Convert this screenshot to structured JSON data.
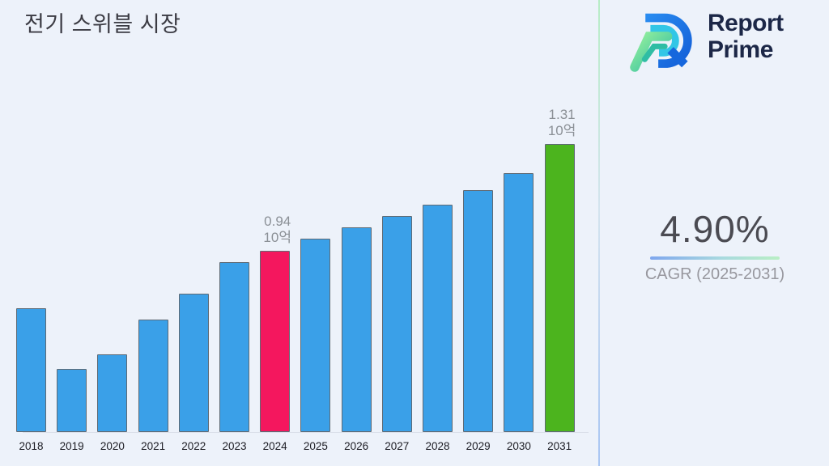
{
  "page": {
    "background": "#edf2fa"
  },
  "header": {
    "title": "전기 스위블 시장"
  },
  "brand": {
    "name_line1": "Report",
    "name_line2": "Prime",
    "text_color": "#1c2747"
  },
  "cagr": {
    "value": "4.90%",
    "label": "CAGR (2025-2031)"
  },
  "chart_data": {
    "type": "bar",
    "title": "전기 스위블 시장",
    "categories": [
      "2018",
      "2019",
      "2020",
      "2021",
      "2022",
      "2023",
      "2024",
      "2025",
      "2026",
      "2027",
      "2028",
      "2029",
      "2030",
      "2031"
    ],
    "values": [
      0.74,
      0.53,
      0.58,
      0.7,
      0.79,
      0.9,
      0.94,
      0.98,
      1.02,
      1.06,
      1.1,
      1.15,
      1.21,
      1.31
    ],
    "unit": "10억",
    "xlabel": "",
    "ylabel": "",
    "ylim": [
      0.31,
      1.31
    ],
    "grid": false,
    "legend": false,
    "colors": {
      "default": "#3aa0e8",
      "2024": "#f4175e",
      "2031": "#4cb41e",
      "bar_border": "#5f6a74"
    },
    "data_labels": [
      {
        "x": "2024",
        "lines": [
          "0.94",
          "10억"
        ]
      },
      {
        "x": "2031",
        "lines": [
          "1.31",
          "10억"
        ]
      }
    ]
  }
}
